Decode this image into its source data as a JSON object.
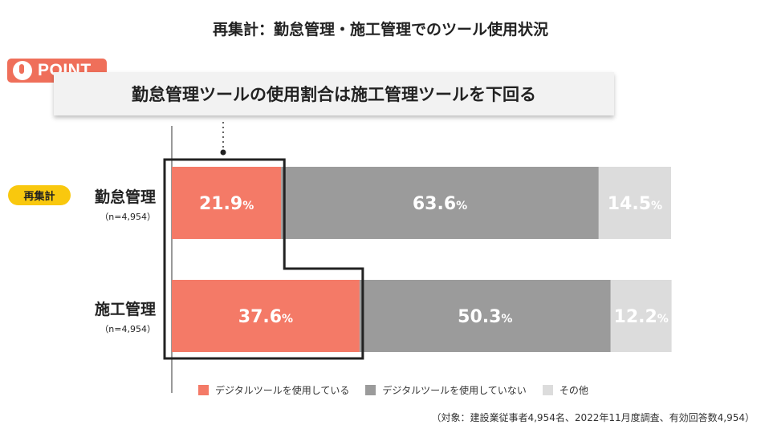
{
  "title": "再集計：勤怠管理・施工管理でのツール使用状況",
  "point_label": "POINT",
  "callout": "勤怠管理ツールの使用割合は施工管理ツールを下回る",
  "re_badge": "再集計",
  "footnote": "（対象：建設業従事者4,954名、2022年11月度調査、有効回答数4,954）",
  "chart_data": {
    "type": "bar",
    "orientation": "horizontal",
    "stacked": true,
    "value_suffix": "%",
    "categories": [
      {
        "name": "勤怠管理",
        "n_label": "（n=4,954）"
      },
      {
        "name": "施工管理",
        "n_label": "（n=4,954）"
      }
    ],
    "series": [
      {
        "name": "デジタルツールを使用している",
        "color": "#f47a67",
        "values": [
          21.9,
          37.6
        ],
        "text_color": "#ffffff"
      },
      {
        "name": "デジタルツールを使用していない",
        "color": "#9b9b9b",
        "values": [
          63.6,
          50.3
        ],
        "text_color": "#ffffff"
      },
      {
        "name": "その他",
        "color": "#dcdcdc",
        "values": [
          14.5,
          12.2
        ],
        "text_color": "#ffffff"
      }
    ],
    "xlim": [
      0,
      100
    ],
    "legend_position": "bottom"
  }
}
